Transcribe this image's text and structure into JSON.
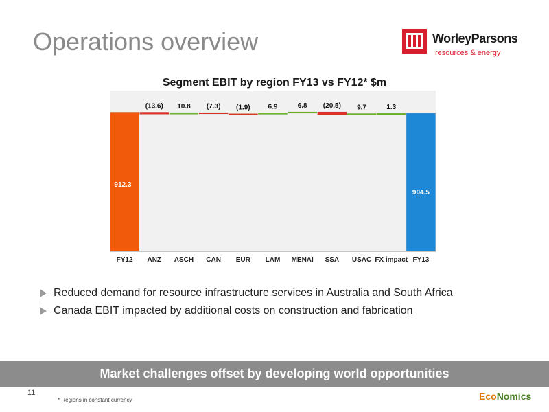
{
  "slide": {
    "title": "Operations overview",
    "page_number": "11",
    "footnote": "* Regions in constant currency",
    "banner": "Market challenges offset by developing world opportunities",
    "bullets": [
      "Reduced demand for resource infrastructure services in Australia and South Africa",
      "Canada EBIT impacted by additional costs on construction and fabrication"
    ]
  },
  "logo": {
    "name": "WorleyParsons",
    "tagline": "resources & energy",
    "color": "#d81e2c"
  },
  "footer_logo": {
    "part1": "Eco",
    "part2": "Nomics"
  },
  "chart_data": {
    "type": "bar",
    "subtype": "waterfall",
    "title": "Segment EBIT by region FY13 vs FY12* $m",
    "categories": [
      "FY12",
      "ANZ",
      "ASCH",
      "CAN",
      "EUR",
      "LAM",
      "MENAI",
      "SSA",
      "USAC",
      "FX impact",
      "FY13"
    ],
    "values": [
      912.3,
      -13.6,
      10.8,
      -7.3,
      -1.9,
      6.9,
      6.8,
      -20.5,
      9.7,
      1.3,
      904.5
    ],
    "labels": [
      "912.3",
      "(13.6)",
      "10.8",
      "(7.3)",
      "(1.9)",
      "6.9",
      "6.8",
      "(20.5)",
      "9.7",
      "1.3",
      "904.5"
    ],
    "kinds": [
      "total",
      "delta",
      "delta",
      "delta",
      "delta",
      "delta",
      "delta",
      "delta",
      "delta",
      "delta",
      "total"
    ],
    "colors": {
      "start": "#f05a0a",
      "end": "#1e88d6",
      "negative": "#e03327",
      "positive": "#6cb520",
      "background": "#f1f1f1"
    },
    "grid": false,
    "legend": "none"
  }
}
